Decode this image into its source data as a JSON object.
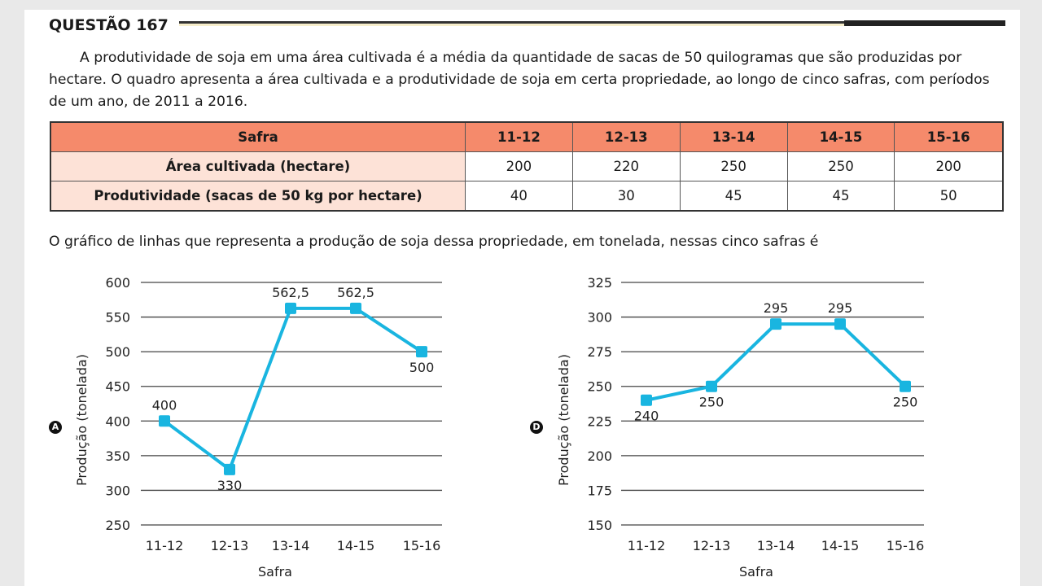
{
  "question": {
    "title": "QUESTÃO 167",
    "paragraph": "A produtividade de soja em uma área cultivada é a média da quantidade de sacas de 50 quilogramas que são produzidas por hectare. O quadro apresenta a área cultivada e a produtividade de soja em certa propriedade, ao longo de cinco safras, com períodos de um ano, de 2011 a 2016.",
    "intro": "O gráfico de linhas que representa a produção de soja dessa propriedade, em tonelada, nessas cinco safras é"
  },
  "table": {
    "header": [
      "Safra",
      "11-12",
      "12-13",
      "13-14",
      "14-15",
      "15-16"
    ],
    "rows": [
      [
        "Área cultivada (hectare)",
        "200",
        "220",
        "250",
        "250",
        "200"
      ],
      [
        "Produtividade (sacas de 50 kg por hectare)",
        "40",
        "30",
        "45",
        "45",
        "50"
      ]
    ],
    "header_color": "#f58a6b",
    "rowhead_color": "#fde2d7"
  },
  "chart_data": [
    {
      "type": "line",
      "option": "A",
      "categories": [
        "11-12",
        "12-13",
        "13-14",
        "14-15",
        "15-16"
      ],
      "values": [
        400,
        330,
        562.5,
        562.5,
        500
      ],
      "data_labels": [
        "400",
        "330",
        "562,5",
        "562,5",
        "500"
      ],
      "label_placement": [
        "above",
        "below",
        "above",
        "above",
        "below"
      ],
      "xlabel": "Safra",
      "ylabel": "Produção (tonelada)",
      "ylim": [
        250,
        600
      ],
      "yticks": [
        "250",
        "300",
        "350",
        "400",
        "450",
        "500",
        "550",
        "600"
      ],
      "grid": true,
      "color": "#19b5e0"
    },
    {
      "type": "line",
      "option": "D",
      "categories": [
        "11-12",
        "12-13",
        "13-14",
        "14-15",
        "15-16"
      ],
      "values": [
        240,
        250,
        295,
        295,
        250
      ],
      "data_labels": [
        "240",
        "250",
        "295",
        "295",
        "250"
      ],
      "label_placement": [
        "below",
        "below",
        "above",
        "above",
        "below"
      ],
      "xlabel": "Safra",
      "ylabel": "Produção (tonelada)",
      "ylim": [
        150,
        325
      ],
      "yticks": [
        "150",
        "175",
        "200",
        "225",
        "250",
        "275",
        "300",
        "325"
      ],
      "grid": true,
      "color": "#19b5e0"
    }
  ]
}
